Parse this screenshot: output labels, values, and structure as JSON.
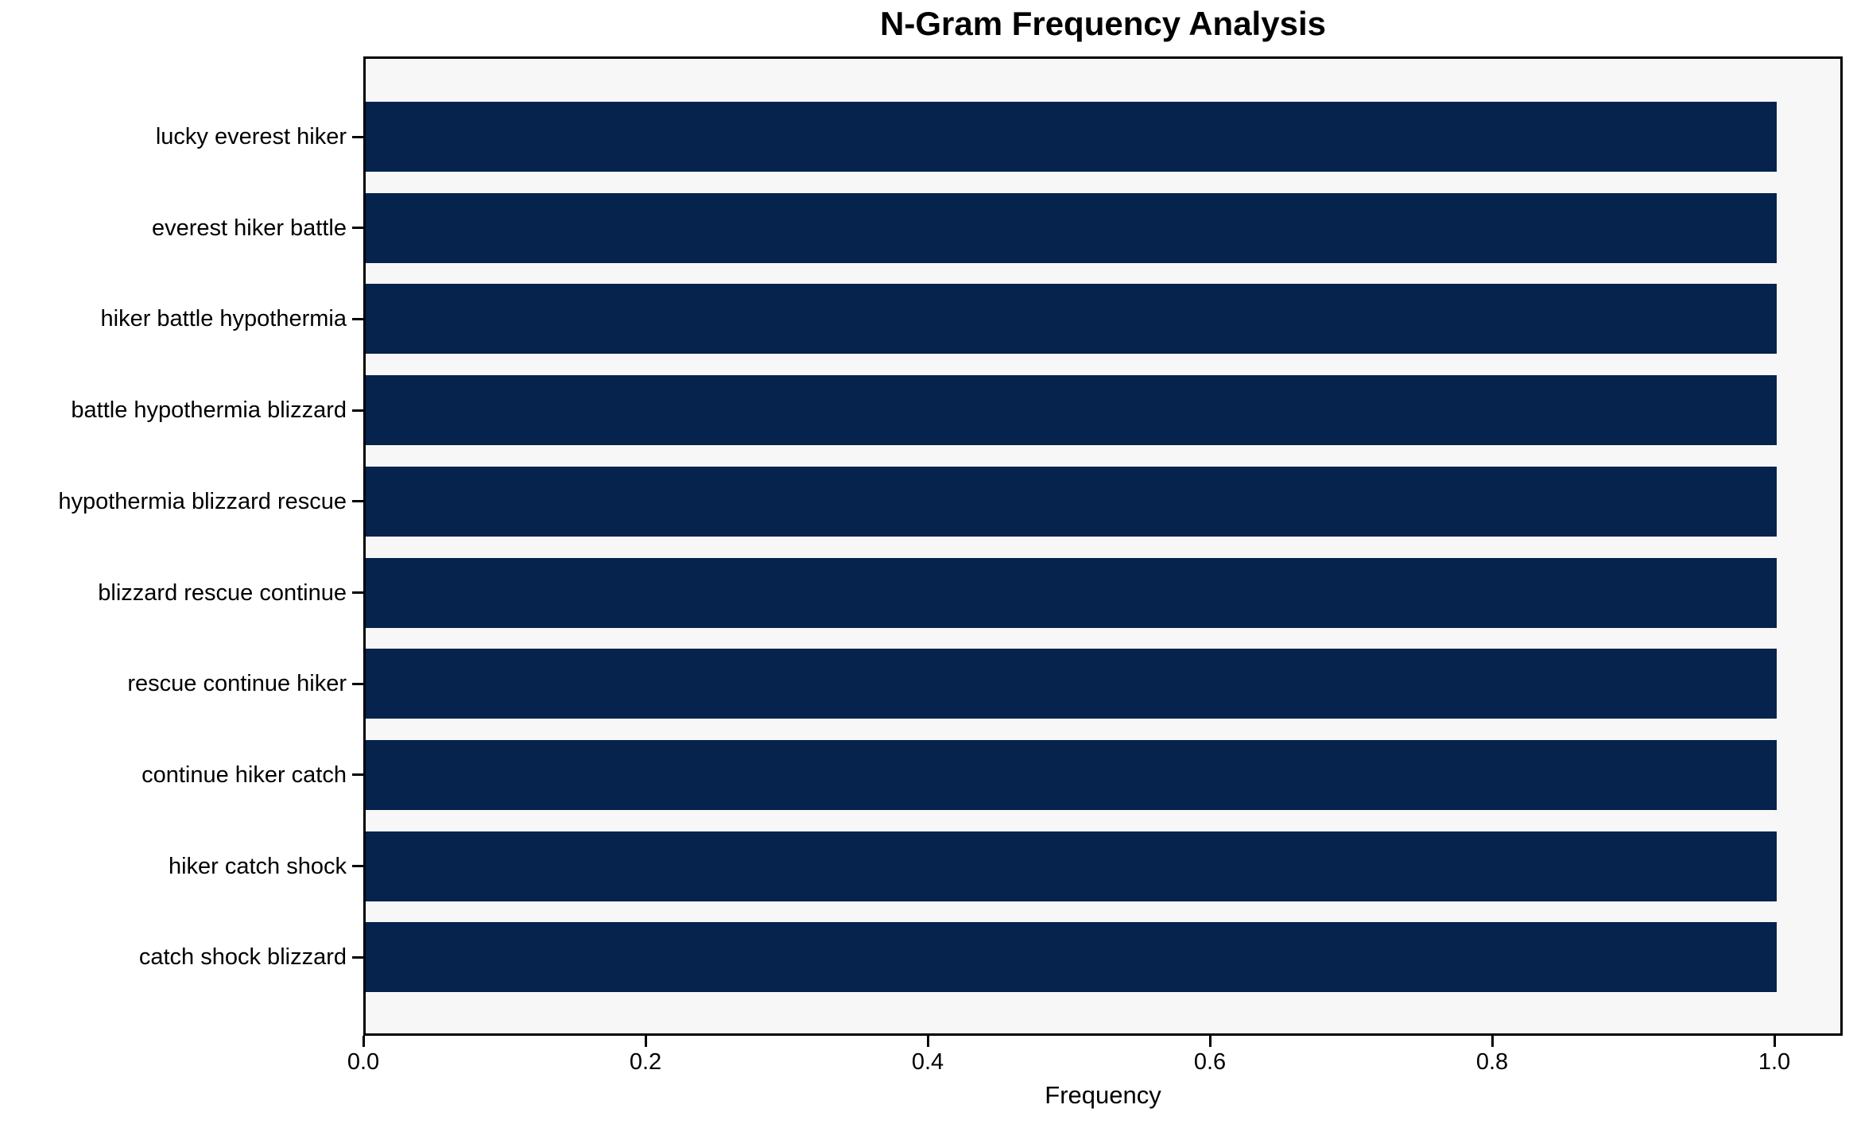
{
  "chart_data": {
    "type": "bar",
    "orientation": "horizontal",
    "title": "N-Gram Frequency Analysis",
    "xlabel": "Frequency",
    "ylabel": "",
    "categories": [
      "lucky everest hiker",
      "everest hiker battle",
      "hiker battle hypothermia",
      "battle hypothermia blizzard",
      "hypothermia blizzard rescue",
      "blizzard rescue continue",
      "rescue continue hiker",
      "continue hiker catch",
      "hiker catch shock",
      "catch shock blizzard"
    ],
    "values": [
      1.0,
      1.0,
      1.0,
      1.0,
      1.0,
      1.0,
      1.0,
      1.0,
      1.0,
      1.0
    ],
    "x_ticks": [
      0.0,
      0.2,
      0.4,
      0.6,
      0.8,
      1.0
    ],
    "x_tick_labels": [
      "0.0",
      "0.2",
      "0.4",
      "0.6",
      "0.8",
      "1.0"
    ],
    "xlim": [
      0,
      1.05
    ],
    "grid": false,
    "legend_position": "none",
    "bar_color": "#05234c",
    "plot_bg_color": "#f7f7f7",
    "spine_color": "#000000"
  }
}
